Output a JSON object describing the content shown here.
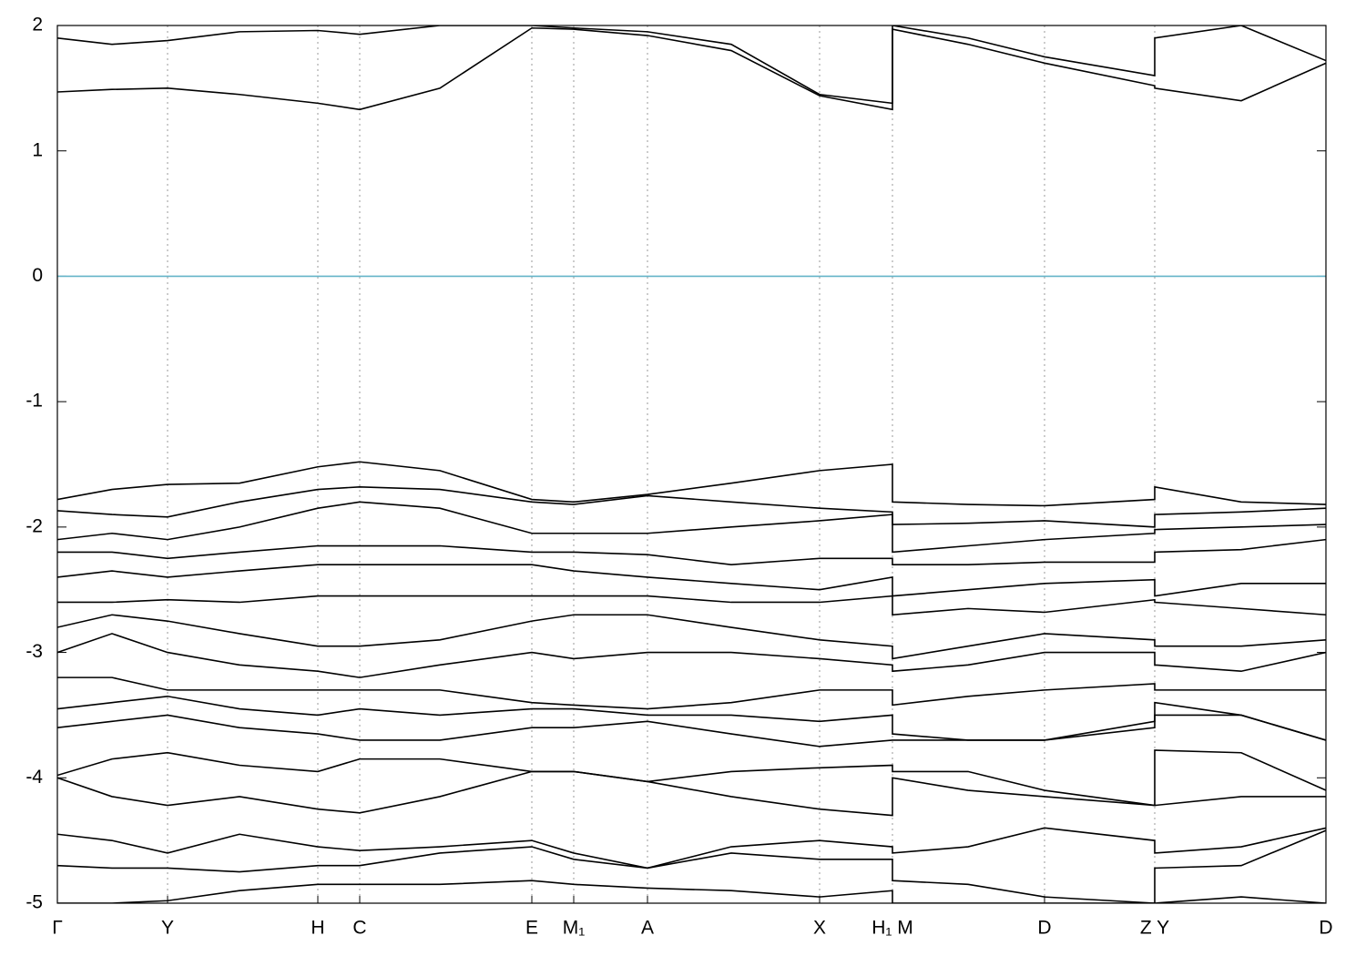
{
  "chart_data": {
    "type": "line",
    "x": [
      0,
      60,
      121,
      200,
      286,
      332,
      420,
      521,
      567,
      648,
      740,
      837,
      917,
      917,
      1000,
      1084,
      1205,
      1205,
      1300,
      1393
    ],
    "xlim": [
      0,
      1393
    ],
    "xticks": [
      {
        "value": 0,
        "label": "Γ"
      },
      {
        "value": 121,
        "label": "Y"
      },
      {
        "value": 286,
        "label": "H"
      },
      {
        "value": 332,
        "label": "C"
      },
      {
        "value": 521,
        "label": "E"
      },
      {
        "value": 567,
        "label": "M₁"
      },
      {
        "value": 648,
        "label": "A"
      },
      {
        "value": 837,
        "label": "X"
      },
      {
        "value": 917,
        "label": "H₁ M"
      },
      {
        "value": 1084,
        "label": "D"
      },
      {
        "value": 1205,
        "label": "Z Y"
      },
      {
        "value": 1393,
        "label": "D"
      }
    ],
    "ylim": [
      -5,
      2
    ],
    "yticks": [
      -5,
      -4,
      -3,
      -2,
      -1,
      0,
      1,
      2
    ],
    "grid": true,
    "series": [
      {
        "color": "#64b4c8",
        "values": [
          0,
          0,
          0,
          0,
          0,
          0,
          0,
          0,
          0,
          0,
          0,
          0,
          0,
          0,
          0,
          0,
          0,
          0,
          0,
          0
        ]
      },
      {
        "color": "#000000",
        "values": [
          1.47,
          1.49,
          1.5,
          1.45,
          1.38,
          1.33,
          1.5,
          1.98,
          1.97,
          1.92,
          1.8,
          1.44,
          1.33,
          1.97,
          1.85,
          1.7,
          1.52,
          1.5,
          1.4,
          1.7
        ]
      },
      {
        "color": "#000000",
        "values": [
          1.9,
          1.85,
          1.88,
          1.95,
          1.96,
          1.93,
          2.0,
          2.0,
          1.98,
          1.95,
          1.85,
          1.45,
          1.38,
          2.0,
          1.9,
          1.75,
          1.6,
          1.9,
          2.0,
          1.72
        ]
      },
      {
        "color": "#000000",
        "values": [
          -1.78,
          -1.7,
          -1.66,
          -1.65,
          -1.52,
          -1.48,
          -1.55,
          -1.78,
          -1.8,
          -1.74,
          -1.65,
          -1.55,
          -1.5,
          -1.8,
          -1.82,
          -1.83,
          -1.78,
          -1.68,
          -1.8,
          -1.82
        ]
      },
      {
        "color": "#000000",
        "values": [
          -1.87,
          -1.9,
          -1.92,
          -1.8,
          -1.7,
          -1.68,
          -1.7,
          -1.8,
          -1.82,
          -1.75,
          -1.8,
          -1.85,
          -1.88,
          -1.98,
          -1.97,
          -1.95,
          -2.0,
          -1.9,
          -1.88,
          -1.85
        ]
      },
      {
        "color": "#000000",
        "values": [
          -2.1,
          -2.05,
          -2.1,
          -2.0,
          -1.85,
          -1.8,
          -1.85,
          -2.05,
          -2.05,
          -2.05,
          -2.0,
          -1.95,
          -1.9,
          -2.2,
          -2.15,
          -2.1,
          -2.05,
          -2.02,
          -2.0,
          -1.98
        ]
      },
      {
        "color": "#000000",
        "values": [
          -2.2,
          -2.2,
          -2.25,
          -2.2,
          -2.15,
          -2.15,
          -2.15,
          -2.2,
          -2.2,
          -2.22,
          -2.3,
          -2.25,
          -2.25,
          -2.3,
          -2.3,
          -2.28,
          -2.28,
          -2.2,
          -2.18,
          -2.1
        ]
      },
      {
        "color": "#000000",
        "values": [
          -2.4,
          -2.35,
          -2.4,
          -2.35,
          -2.3,
          -2.3,
          -2.3,
          -2.3,
          -2.35,
          -2.4,
          -2.45,
          -2.5,
          -2.4,
          -2.55,
          -2.5,
          -2.45,
          -2.42,
          -2.55,
          -2.45,
          -2.45
        ]
      },
      {
        "color": "#000000",
        "values": [
          -2.6,
          -2.6,
          -2.58,
          -2.6,
          -2.55,
          -2.55,
          -2.55,
          -2.55,
          -2.55,
          -2.55,
          -2.6,
          -2.6,
          -2.55,
          -2.7,
          -2.65,
          -2.68,
          -2.58,
          -2.6,
          -2.65,
          -2.7
        ]
      },
      {
        "color": "#000000",
        "values": [
          -2.8,
          -2.7,
          -2.75,
          -2.85,
          -2.95,
          -2.95,
          -2.9,
          -2.75,
          -2.7,
          -2.7,
          -2.8,
          -2.9,
          -2.95,
          -3.05,
          -2.95,
          -2.85,
          -2.9,
          -2.95,
          -2.95,
          -2.9
        ]
      },
      {
        "color": "#000000",
        "values": [
          -3.0,
          -2.85,
          -3.0,
          -3.1,
          -3.15,
          -3.2,
          -3.1,
          -3.0,
          -3.05,
          -3.0,
          -3.0,
          -3.05,
          -3.1,
          -3.15,
          -3.1,
          -3.0,
          -3.0,
          -3.1,
          -3.15,
          -3.0
        ]
      },
      {
        "color": "#000000",
        "values": [
          -3.2,
          -3.2,
          -3.3,
          -3.3,
          -3.3,
          -3.3,
          -3.3,
          -3.4,
          -3.42,
          -3.45,
          -3.4,
          -3.3,
          -3.3,
          -3.42,
          -3.35,
          -3.3,
          -3.25,
          -3.3,
          -3.3,
          -3.3
        ]
      },
      {
        "color": "#000000",
        "values": [
          -3.45,
          -3.4,
          -3.35,
          -3.45,
          -3.5,
          -3.45,
          -3.5,
          -3.45,
          -3.45,
          -3.5,
          -3.5,
          -3.55,
          -3.5,
          -3.65,
          -3.7,
          -3.7,
          -3.6,
          -3.5,
          -3.5,
          -3.7
        ]
      },
      {
        "color": "#000000",
        "values": [
          -3.6,
          -3.55,
          -3.5,
          -3.6,
          -3.65,
          -3.7,
          -3.7,
          -3.6,
          -3.6,
          -3.55,
          -3.65,
          -3.75,
          -3.7,
          -3.7,
          -3.7,
          -3.7,
          -3.55,
          -3.4,
          -3.5,
          -3.7
        ]
      },
      {
        "color": "#000000",
        "values": [
          -3.98,
          -3.85,
          -3.8,
          -3.9,
          -3.95,
          -3.85,
          -3.85,
          -3.95,
          -3.95,
          -4.03,
          -3.95,
          -3.92,
          -3.9,
          -3.95,
          -3.95,
          -4.1,
          -4.22,
          -3.78,
          -3.8,
          -4.1
        ]
      },
      {
        "color": "#000000",
        "values": [
          -4.0,
          -4.15,
          -4.22,
          -4.15,
          -4.25,
          -4.28,
          -4.15,
          -3.95,
          -3.95,
          -4.03,
          -4.15,
          -4.25,
          -4.3,
          -4.0,
          -4.1,
          -4.15,
          -4.22,
          -4.22,
          -4.15,
          -4.15
        ]
      },
      {
        "color": "#000000",
        "values": [
          -4.45,
          -4.5,
          -4.6,
          -4.45,
          -4.55,
          -4.58,
          -4.55,
          -4.5,
          -4.6,
          -4.72,
          -4.55,
          -4.5,
          -4.55,
          -4.6,
          -4.55,
          -4.4,
          -4.5,
          -4.6,
          -4.55,
          -4.4
        ]
      },
      {
        "color": "#000000",
        "values": [
          -4.7,
          -4.72,
          -4.72,
          -4.75,
          -4.7,
          -4.7,
          -4.6,
          -4.55,
          -4.65,
          -4.72,
          -4.6,
          -4.65,
          -4.65,
          -4.82,
          -4.85,
          -4.95,
          -5.0,
          -4.72,
          -4.7,
          -4.42
        ]
      },
      {
        "color": "#000000",
        "values": [
          -5.0,
          -5.0,
          -4.98,
          -4.9,
          -4.85,
          -4.85,
          -4.85,
          -4.82,
          -4.85,
          -4.88,
          -4.9,
          -4.95,
          -4.9,
          -5.0,
          -5.0,
          -5.0,
          -5.0,
          -5.0,
          -4.95,
          -5.0
        ]
      }
    ]
  }
}
